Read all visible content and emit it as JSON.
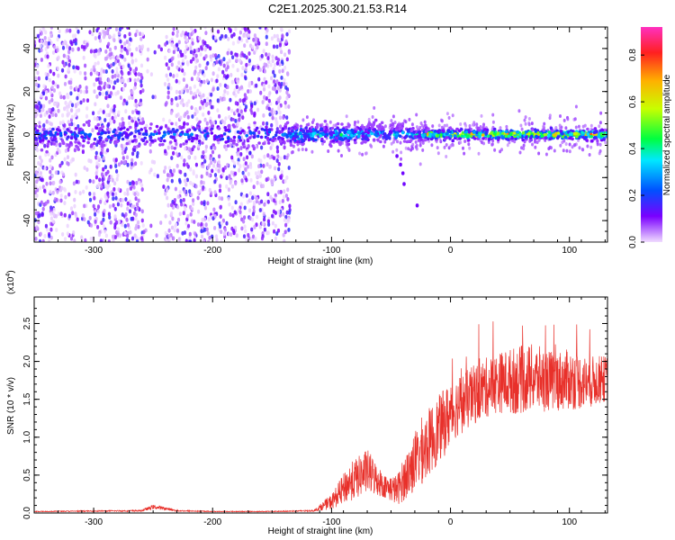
{
  "chart_data": [
    {
      "type": "heatmap",
      "title": "C2E1.2025.300.21.53.R14",
      "xlabel": "Height of straight line (km)",
      "ylabel": "Frequency (Hz)",
      "xlim": [
        -350,
        132
      ],
      "ylim": [
        -50,
        50
      ],
      "xticks": [
        -300,
        -200,
        -100,
        0,
        100
      ],
      "yticks": [
        -40,
        -20,
        0,
        20,
        40
      ],
      "colorbar": {
        "label": "Normalized spectral amplitude",
        "range": [
          0.0,
          0.92
        ],
        "ticks": [
          "0.0",
          "0.2",
          "0.4",
          "0.6",
          "0.8"
        ],
        "colormap": [
          "#f0dcff",
          "#7a00ff",
          "#0050ff",
          "#00e8ff",
          "#00ff40",
          "#c8ff00",
          "#ffb000",
          "#ff2020",
          "#ff30c0"
        ]
      },
      "features": {
        "noise_region_km": [
          -350,
          -135
        ],
        "noise_gap_km": [
          -258,
          -240
        ],
        "signal_line_freq_hz": 0,
        "signal_visible_from_km": -135,
        "strong_signal_from_km": -20
      }
    },
    {
      "type": "line",
      "xlabel": "Height of straight line (km)",
      "ylabel": "SNR (10 * v/v)",
      "y_scale_label": "(x10",
      "y_scale_exponent": "4",
      "xlim": [
        -350,
        132
      ],
      "ylim": [
        0,
        2.85
      ],
      "xticks": [
        -300,
        -200,
        -100,
        0,
        100
      ],
      "yticks": [
        "0.0",
        "0.5",
        "1.0",
        "1.5",
        "2.0",
        "2.5"
      ],
      "ytick_values": [
        0,
        0.5,
        1.0,
        1.5,
        2.0,
        2.5
      ],
      "color": "#e8302a",
      "envelope": {
        "x": [
          -350,
          -260,
          -250,
          -240,
          -230,
          -200,
          -150,
          -115,
          -100,
          -85,
          -70,
          -55,
          -45,
          -35,
          -25,
          -15,
          -5,
          5,
          15,
          25,
          40,
          55,
          70,
          85,
          100,
          115,
          132
        ],
        "mean": [
          0.02,
          0.03,
          0.08,
          0.06,
          0.03,
          0.02,
          0.02,
          0.03,
          0.15,
          0.4,
          0.55,
          0.35,
          0.3,
          0.55,
          0.8,
          1.0,
          1.2,
          1.4,
          1.5,
          1.62,
          1.72,
          1.75,
          1.78,
          1.74,
          1.76,
          1.72,
          1.78
        ],
        "spread": [
          0.005,
          0.01,
          0.03,
          0.02,
          0.01,
          0.005,
          0.005,
          0.01,
          0.1,
          0.25,
          0.3,
          0.15,
          0.2,
          0.35,
          0.45,
          0.45,
          0.45,
          0.4,
          0.4,
          0.4,
          0.4,
          0.45,
          0.45,
          0.4,
          0.4,
          0.35,
          0.3
        ]
      }
    }
  ]
}
